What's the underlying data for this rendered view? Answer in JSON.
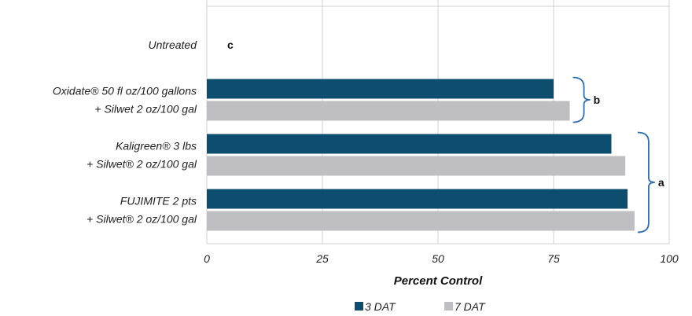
{
  "chart_data": {
    "type": "bar",
    "orientation": "horizontal",
    "categories": [
      [
        "Untreated"
      ],
      [
        "Oxidate® 50 fl oz/100 gallons",
        "+ Silwet 2 oz/100 gal"
      ],
      [
        "Kaligreen® 3 lbs",
        "+ Silwet® 2 oz/100 gal"
      ],
      [
        "FUJIMITE 2 pts",
        "+ Silwet® 2 oz/100 gal"
      ]
    ],
    "series": [
      {
        "name": "3 DAT",
        "values": [
          0,
          75,
          87.5,
          91
        ]
      },
      {
        "name": "7 DAT",
        "values": [
          0,
          78.5,
          90.5,
          92.5
        ]
      }
    ],
    "xlabel": "Percent Control",
    "xlim": [
      0,
      100
    ],
    "xticks": [
      "0",
      "25",
      "50",
      "75",
      "100"
    ],
    "grid": "vertical",
    "legend": "bottom-center",
    "significance": [
      {
        "letter": "c",
        "categories": [
          0
        ]
      },
      {
        "letter": "b",
        "categories": [
          1
        ]
      },
      {
        "letter": "a",
        "categories": [
          2,
          3
        ]
      }
    ],
    "colors": {
      "3 DAT": "#0d4d6e",
      "7 DAT": "#bfbfc1",
      "grid": "#d0d0d0",
      "bracket": "#2f6db3"
    }
  }
}
